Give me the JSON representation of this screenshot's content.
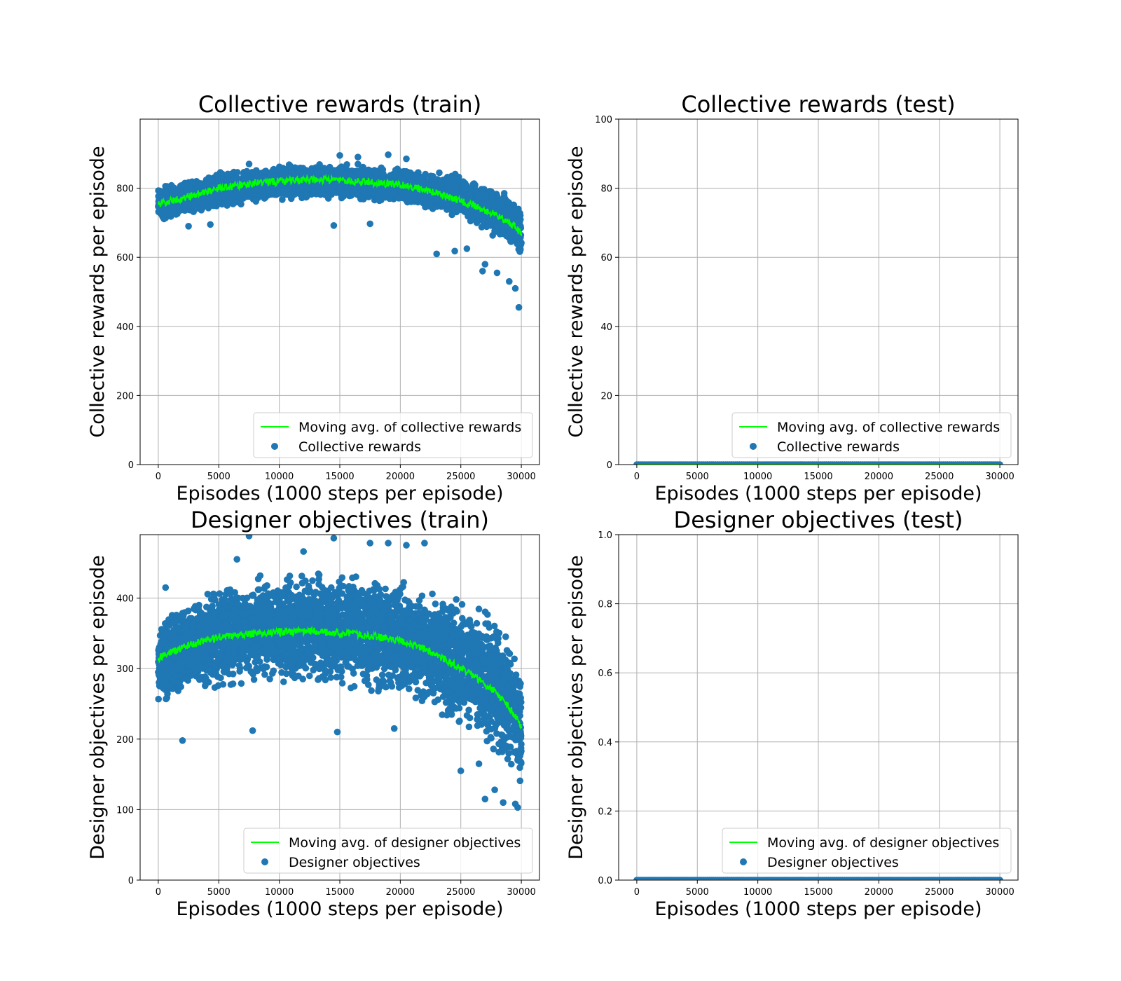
{
  "colors": {
    "scatter": "#1f77b4",
    "moving_avg": "#00ff00",
    "grid": "#b0b0b0"
  },
  "chart_data": [
    {
      "id": "collective-train",
      "type": "scatter",
      "title": "Collective rewards (train)",
      "xlabel": "Episodes (1000 steps per episode)",
      "ylabel": "Collective rewards per episode",
      "xlim": [
        -1500,
        31500
      ],
      "ylim": [
        0,
        1000
      ],
      "xticks": [
        0,
        5000,
        10000,
        15000,
        20000,
        25000,
        30000
      ],
      "yticks": [
        0,
        200,
        400,
        600,
        800
      ],
      "grid": true,
      "legend_position": "lower-right",
      "series": [
        {
          "name": "Moving avg. of collective rewards",
          "kind": "line",
          "color": "#00ff00",
          "x": [
            0,
            2000,
            5000,
            8000,
            10000,
            13000,
            15000,
            17000,
            20000,
            22000,
            24000,
            26000,
            28000,
            29500,
            30000
          ],
          "y": [
            755,
            770,
            800,
            815,
            820,
            825,
            822,
            818,
            810,
            795,
            775,
            750,
            720,
            690,
            665
          ]
        },
        {
          "name": "Collective rewards",
          "kind": "scatter",
          "color": "#1f77b4",
          "band": {
            "x": [
              0,
              2000,
              5000,
              8000,
              10000,
              13000,
              15000,
              17000,
              20000,
              22000,
              24000,
              26000,
              28000,
              29500,
              30000
            ],
            "lower": [
              700,
              710,
              740,
              755,
              760,
              765,
              762,
              758,
              750,
              735,
              715,
              690,
              650,
              610,
              550
            ],
            "upper": [
              810,
              830,
              855,
              865,
              875,
              878,
              875,
              872,
              865,
              858,
              850,
              835,
              810,
              780,
              760
            ]
          },
          "outliers": [
            [
              15000,
              895
            ],
            [
              19000,
              897
            ],
            [
              16500,
              890
            ],
            [
              7500,
              870
            ],
            [
              20500,
              885
            ],
            [
              2500,
              690
            ],
            [
              4300,
              695
            ],
            [
              14500,
              692
            ],
            [
              17500,
              697
            ],
            [
              23000,
              610
            ],
            [
              24500,
              618
            ],
            [
              25500,
              625
            ],
            [
              27000,
              580
            ],
            [
              26800,
              560
            ],
            [
              28000,
              555
            ],
            [
              29800,
              455
            ],
            [
              29500,
              510
            ],
            [
              29000,
              530
            ]
          ]
        }
      ]
    },
    {
      "id": "collective-test",
      "type": "scatter",
      "title": "Collective rewards (test)",
      "xlabel": "Episodes (1000 steps per episode)",
      "ylabel": "Collective rewards per episode",
      "xlim": [
        -1500,
        31500
      ],
      "ylim": [
        0,
        100
      ],
      "xticks": [
        0,
        5000,
        10000,
        15000,
        20000,
        25000,
        30000
      ],
      "yticks": [
        0,
        20,
        40,
        60,
        80,
        100
      ],
      "grid": true,
      "legend_position": "lower-right",
      "series": [
        {
          "name": "Moving avg. of collective rewards",
          "kind": "line",
          "color": "#00ff00",
          "x": [
            0,
            30000
          ],
          "y": [
            0,
            0
          ]
        },
        {
          "name": "Collective rewards",
          "kind": "scatter",
          "color": "#1f77b4",
          "band": {
            "x": [
              0,
              30000
            ],
            "lower": [
              0,
              0
            ],
            "upper": [
              0,
              0
            ]
          },
          "outliers": []
        }
      ]
    },
    {
      "id": "designer-train",
      "type": "scatter",
      "title": "Designer objectives (train)",
      "xlabel": "Episodes (1000 steps per episode)",
      "ylabel": "Designer objectives per episode",
      "xlim": [
        -1500,
        31500
      ],
      "ylim": [
        0,
        490
      ],
      "xticks": [
        0,
        5000,
        10000,
        15000,
        20000,
        25000,
        30000
      ],
      "yticks": [
        0,
        100,
        200,
        300,
        400
      ],
      "grid": true,
      "legend_position": "lower-right",
      "series": [
        {
          "name": "Moving avg. of designer objectives",
          "kind": "line",
          "color": "#00ff00",
          "x": [
            0,
            2000,
            5000,
            8000,
            10000,
            13000,
            15000,
            17000,
            20000,
            22000,
            24000,
            26000,
            28000,
            29500,
            30000
          ],
          "y": [
            315,
            330,
            345,
            350,
            352,
            353,
            350,
            348,
            340,
            328,
            310,
            290,
            265,
            235,
            215
          ]
        },
        {
          "name": "Designer objectives",
          "kind": "scatter",
          "color": "#1f77b4",
          "band": {
            "x": [
              0,
              2000,
              5000,
              8000,
              10000,
              13000,
              15000,
              17000,
              20000,
              22000,
              24000,
              26000,
              28000,
              29500,
              30000
            ],
            "lower": [
              245,
              255,
              265,
              270,
              270,
              268,
              265,
              260,
              250,
              235,
              215,
              190,
              160,
              130,
              115
            ],
            "upper": [
              380,
              400,
              425,
              435,
              440,
              445,
              445,
              442,
              438,
              430,
              420,
              405,
              385,
              345,
              300
            ]
          },
          "outliers": [
            [
              7500,
              488
            ],
            [
              14500,
              485
            ],
            [
              19000,
              478
            ],
            [
              17500,
              478
            ],
            [
              20500,
              475
            ],
            [
              22000,
              478
            ],
            [
              6500,
              455
            ],
            [
              12000,
              466
            ],
            [
              2000,
              198
            ],
            [
              7800,
              212
            ],
            [
              14800,
              210
            ],
            [
              19500,
              215
            ],
            [
              25000,
              155
            ],
            [
              26500,
              165
            ],
            [
              27000,
              115
            ],
            [
              27800,
              128
            ],
            [
              28500,
              110
            ],
            [
              29700,
              103
            ],
            [
              29500,
              108
            ],
            [
              600,
              415
            ]
          ]
        }
      ]
    },
    {
      "id": "designer-test",
      "type": "scatter",
      "title": "Designer objectives (test)",
      "xlabel": "Episodes (1000 steps per episode)",
      "ylabel": "Designer objectives per episode",
      "xlim": [
        -1500,
        31500
      ],
      "ylim": [
        0,
        1
      ],
      "xticks": [
        0,
        5000,
        10000,
        15000,
        20000,
        25000,
        30000
      ],
      "yticks": [
        0.0,
        0.2,
        0.4,
        0.6,
        0.8,
        1.0
      ],
      "ytick_decimals": 1,
      "grid": true,
      "legend_position": "lower-right",
      "series": [
        {
          "name": "Moving avg. of designer objectives",
          "kind": "line",
          "color": "#00ff00",
          "x": [
            0,
            30000
          ],
          "y": [
            0,
            0
          ]
        },
        {
          "name": "Designer objectives",
          "kind": "scatter",
          "color": "#1f77b4",
          "band": {
            "x": [
              0,
              30000
            ],
            "lower": [
              0,
              0
            ],
            "upper": [
              0,
              0
            ]
          },
          "outliers": []
        }
      ]
    }
  ]
}
